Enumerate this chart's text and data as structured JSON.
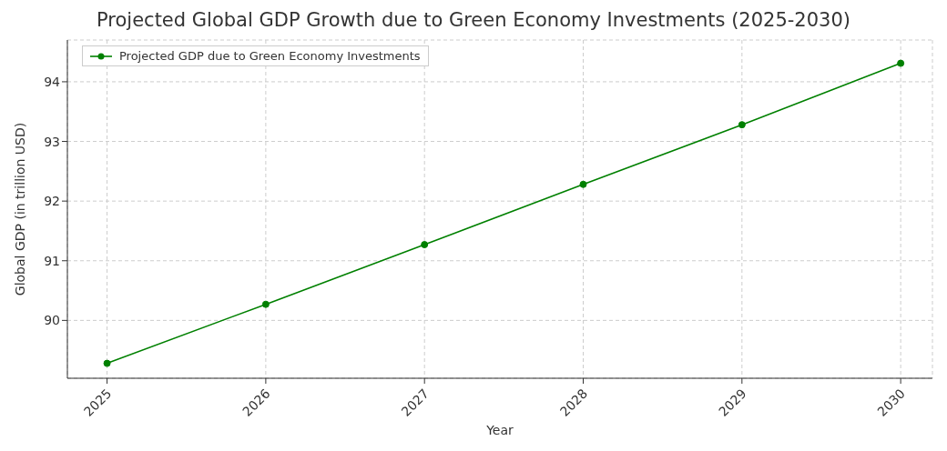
{
  "chart_data": {
    "type": "line",
    "title": "Projected Global GDP Growth due to Green Economy Investments (2025-2030)",
    "xlabel": "Year",
    "ylabel": "Global GDP (in trillion USD)",
    "x": [
      2025,
      2026,
      2027,
      2028,
      2029,
      2030
    ],
    "series": [
      {
        "name": "Projected GDP due to Green Economy Investments",
        "color": "#008000",
        "values": [
          89.28,
          90.27,
          91.27,
          92.28,
          93.28,
          94.31
        ]
      }
    ],
    "xlim": [
      2024.75,
      2030.2
    ],
    "xticks": [
      2025,
      2026,
      2027,
      2028,
      2029,
      2030
    ],
    "ylim": [
      89.03,
      94.7
    ],
    "yticks": [
      90,
      91,
      92,
      93,
      94
    ],
    "grid": true,
    "legend": "top left",
    "marker": "circle",
    "line_style": "solid"
  }
}
